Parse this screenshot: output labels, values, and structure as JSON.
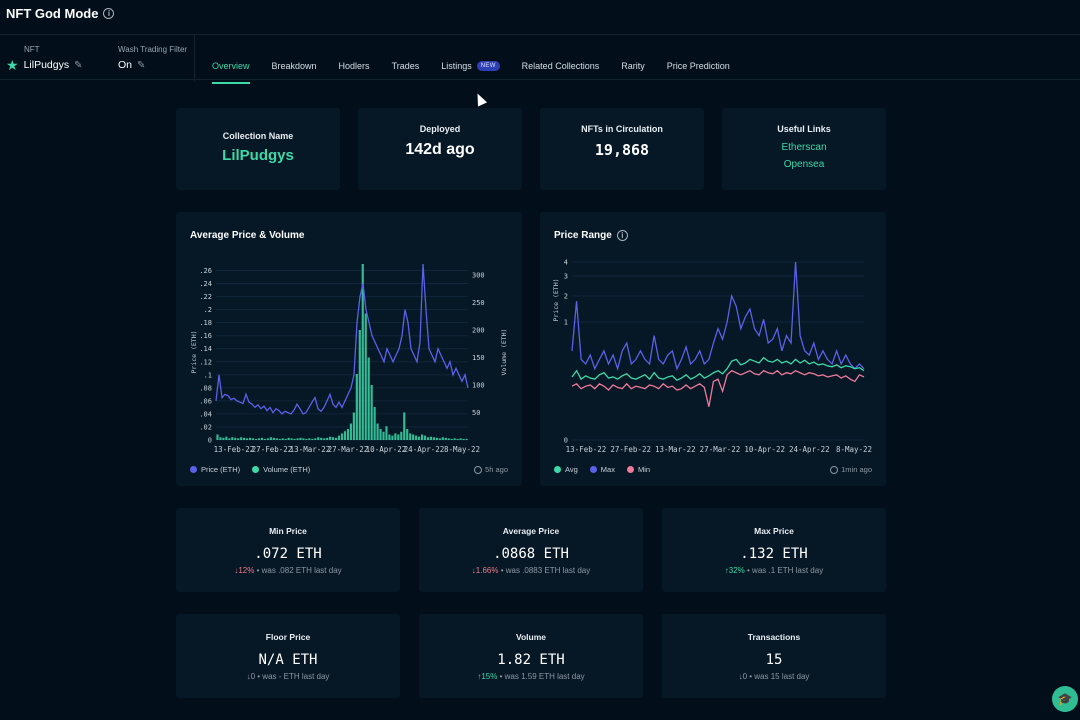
{
  "app": {
    "title": "NFT God Mode"
  },
  "selector": {
    "nft_label": "NFT",
    "nft_value": "LilPudgys",
    "wash_label": "Wash Trading Filter",
    "wash_value": "On"
  },
  "tabs": [
    {
      "label": "Overview"
    },
    {
      "label": "Breakdown"
    },
    {
      "label": "Hodlers"
    },
    {
      "label": "Trades"
    },
    {
      "label": "Listings",
      "badge": "NEW"
    },
    {
      "label": "Related Collections"
    },
    {
      "label": "Rarity"
    },
    {
      "label": "Price Prediction"
    }
  ],
  "summary": {
    "collection_label": "Collection Name",
    "collection_value": "LilPudgys",
    "deployed_label": "Deployed",
    "deployed_value": "142d ago",
    "circulation_label": "NFTs in Circulation",
    "circulation_value": "19,868",
    "links_label": "Useful Links",
    "link_1": "Etherscan",
    "link_2": "Opensea"
  },
  "avg_chart": {
    "title": "Average Price & Volume",
    "legend_price": "Price (ETH)",
    "legend_volume": "Volume (ETH)",
    "updated": "5h ago",
    "color_price": "#5b61e8",
    "color_volume": "#3dd9a8"
  },
  "range_chart": {
    "title": "Price Range",
    "legend_avg": "Avg",
    "legend_max": "Max",
    "legend_min": "Min",
    "updated": "1min ago",
    "color_avg": "#3dd9a8",
    "color_max": "#5b61e8",
    "color_min": "#ee7a9a"
  },
  "metrics": [
    {
      "title": "Min Price",
      "value": ".072 ETH",
      "change": "↓12%",
      "change_type": "neg",
      "was": "• was .082 ETH last day"
    },
    {
      "title": "Average Price",
      "value": ".0868 ETH",
      "change": "↓1.66%",
      "change_type": "neg",
      "was": "• was .0883 ETH last day"
    },
    {
      "title": "Max Price",
      "value": ".132 ETH",
      "change": "↑32%",
      "change_type": "pos",
      "was": "• was .1 ETH last day"
    },
    {
      "title": "Floor Price",
      "value": "N/A ETH",
      "change": "↓0",
      "change_type": "neu",
      "was": "• was - ETH last day"
    },
    {
      "title": "Volume",
      "value": "1.82 ETH",
      "change": "↑15%",
      "change_type": "pos",
      "was": "• was 1.59 ETH last day"
    },
    {
      "title": "Transactions",
      "value": "15",
      "change": "↓0",
      "change_type": "neu",
      "was": "• was 15 last day"
    }
  ],
  "chart_data": [
    {
      "type": "line",
      "title": "Average Price & Volume",
      "x_ticks": [
        "13-Feb-22",
        "27-Feb-22",
        "13-Mar-22",
        "27-Mar-22",
        "10-Apr-22",
        "24-Apr-22",
        "8-May-22"
      ],
      "ylabel": "Price (ETH)",
      "y2label": "Volume (ETH)",
      "y_ticks": [
        "0",
        ".02",
        ".04",
        ".06",
        ".08",
        ".1",
        ".12",
        ".14",
        ".16",
        ".18",
        ".2",
        ".22",
        ".24",
        ".26"
      ],
      "y2_ticks": [
        "50",
        "100",
        "150",
        "200",
        "250",
        "300"
      ],
      "ylim": [
        0,
        0.27
      ],
      "y2lim": [
        0,
        320
      ],
      "series": [
        {
          "name": "Price (ETH)",
          "axis": "left",
          "kind": "line",
          "values": [
            0.06,
            0.1,
            0.065,
            0.07,
            0.068,
            0.062,
            0.064,
            0.06,
            0.058,
            0.056,
            0.07,
            0.058,
            0.055,
            0.05,
            0.054,
            0.048,
            0.052,
            0.045,
            0.05,
            0.042,
            0.048,
            0.045,
            0.04,
            0.044,
            0.042,
            0.04,
            0.046,
            0.055,
            0.048,
            0.04,
            0.042,
            0.05,
            0.058,
            0.065,
            0.048,
            0.044,
            0.05,
            0.06,
            0.07,
            0.055,
            0.05,
            0.058,
            0.05,
            0.06,
            0.07,
            0.08,
            0.1,
            0.18,
            0.22,
            0.24,
            0.2,
            0.18,
            0.16,
            0.15,
            0.14,
            0.13,
            0.12,
            0.14,
            0.13,
            0.12,
            0.13,
            0.14,
            0.16,
            0.2,
            0.18,
            0.14,
            0.13,
            0.12,
            0.15,
            0.27,
            0.2,
            0.14,
            0.13,
            0.12,
            0.14,
            0.13,
            0.12,
            0.11,
            0.12,
            0.1,
            0.11,
            0.1,
            0.09,
            0.1,
            0.08
          ]
        },
        {
          "name": "Volume (ETH)",
          "axis": "right",
          "kind": "bar",
          "values": [
            10,
            5,
            4,
            6,
            3,
            5,
            4,
            3,
            5,
            4,
            3,
            4,
            3,
            2,
            3,
            4,
            2,
            3,
            5,
            4,
            3,
            2,
            3,
            2,
            4,
            3,
            2,
            3,
            4,
            3,
            2,
            3,
            2,
            3,
            5,
            4,
            3,
            4,
            6,
            5,
            4,
            8,
            12,
            16,
            20,
            30,
            50,
            120,
            200,
            320,
            230,
            150,
            100,
            60,
            30,
            20,
            15,
            25,
            10,
            8,
            12,
            10,
            15,
            50,
            20,
            12,
            10,
            8,
            6,
            10,
            8,
            5,
            6,
            5,
            4,
            3,
            5,
            4,
            3,
            2,
            3,
            2,
            3,
            2,
            2
          ]
        }
      ]
    },
    {
      "type": "line",
      "title": "Price Range",
      "x_ticks": [
        "13-Feb-22",
        "27-Feb-22",
        "13-Mar-22",
        "27-Mar-22",
        "10-Apr-22",
        "24-Apr-22",
        "8-May-22"
      ],
      "ylabel": "Price (ETH)",
      "y_ticks": [
        "0",
        "1",
        "2",
        "3",
        "4"
      ],
      "series": [
        {
          "name": "Avg",
          "values": [
            0.32,
            0.38,
            0.3,
            0.33,
            0.31,
            0.3,
            0.34,
            0.36,
            0.31,
            0.32,
            0.3,
            0.33,
            0.35,
            0.31,
            0.3,
            0.32,
            0.34,
            0.3,
            0.36,
            0.31,
            0.3,
            0.32,
            0.33,
            0.29,
            0.31,
            0.34,
            0.3,
            0.32,
            0.35,
            0.31,
            0.33,
            0.36,
            0.38,
            0.35,
            0.4,
            0.48,
            0.5,
            0.44,
            0.46,
            0.5,
            0.48,
            0.46,
            0.52,
            0.48,
            0.47,
            0.5,
            0.46,
            0.48,
            0.45,
            0.5,
            0.46,
            0.49,
            0.45,
            0.47,
            0.44,
            0.45,
            0.43,
            0.42,
            0.44,
            0.41,
            0.43,
            0.42,
            0.4,
            0.41,
            0.38
          ]
        },
        {
          "name": "Max",
          "values": [
            0.6,
            1.8,
            0.5,
            0.45,
            0.55,
            0.4,
            0.5,
            0.6,
            0.45,
            0.55,
            0.4,
            0.6,
            0.7,
            0.45,
            0.5,
            0.6,
            0.5,
            0.45,
            0.8,
            0.5,
            0.45,
            0.55,
            0.6,
            0.4,
            0.5,
            0.65,
            0.45,
            0.5,
            0.6,
            0.45,
            0.5,
            0.7,
            0.9,
            0.75,
            1.0,
            2.0,
            1.6,
            0.9,
            1.2,
            1.5,
            0.9,
            0.8,
            1.1,
            0.7,
            0.75,
            0.9,
            0.6,
            0.8,
            0.7,
            4.0,
            0.8,
            0.6,
            0.55,
            0.7,
            0.5,
            0.6,
            0.5,
            0.45,
            0.6,
            0.45,
            0.55,
            0.45,
            0.4,
            0.45,
            0.4
          ]
        },
        {
          "name": "Min",
          "values": [
            0.24,
            0.26,
            0.22,
            0.24,
            0.25,
            0.22,
            0.26,
            0.24,
            0.21,
            0.25,
            0.23,
            0.22,
            0.26,
            0.22,
            0.24,
            0.23,
            0.22,
            0.25,
            0.24,
            0.22,
            0.26,
            0.23,
            0.24,
            0.21,
            0.22,
            0.25,
            0.22,
            0.24,
            0.26,
            0.23,
            0.1,
            0.28,
            0.3,
            0.2,
            0.34,
            0.38,
            0.36,
            0.34,
            0.36,
            0.38,
            0.35,
            0.34,
            0.38,
            0.36,
            0.35,
            0.38,
            0.34,
            0.36,
            0.35,
            0.38,
            0.36,
            0.34,
            0.36,
            0.35,
            0.33,
            0.34,
            0.32,
            0.33,
            0.34,
            0.31,
            0.33,
            0.3,
            0.28,
            0.34,
            0.32
          ]
        }
      ]
    }
  ],
  "fab": {
    "icon": "graduation-cap-icon"
  }
}
